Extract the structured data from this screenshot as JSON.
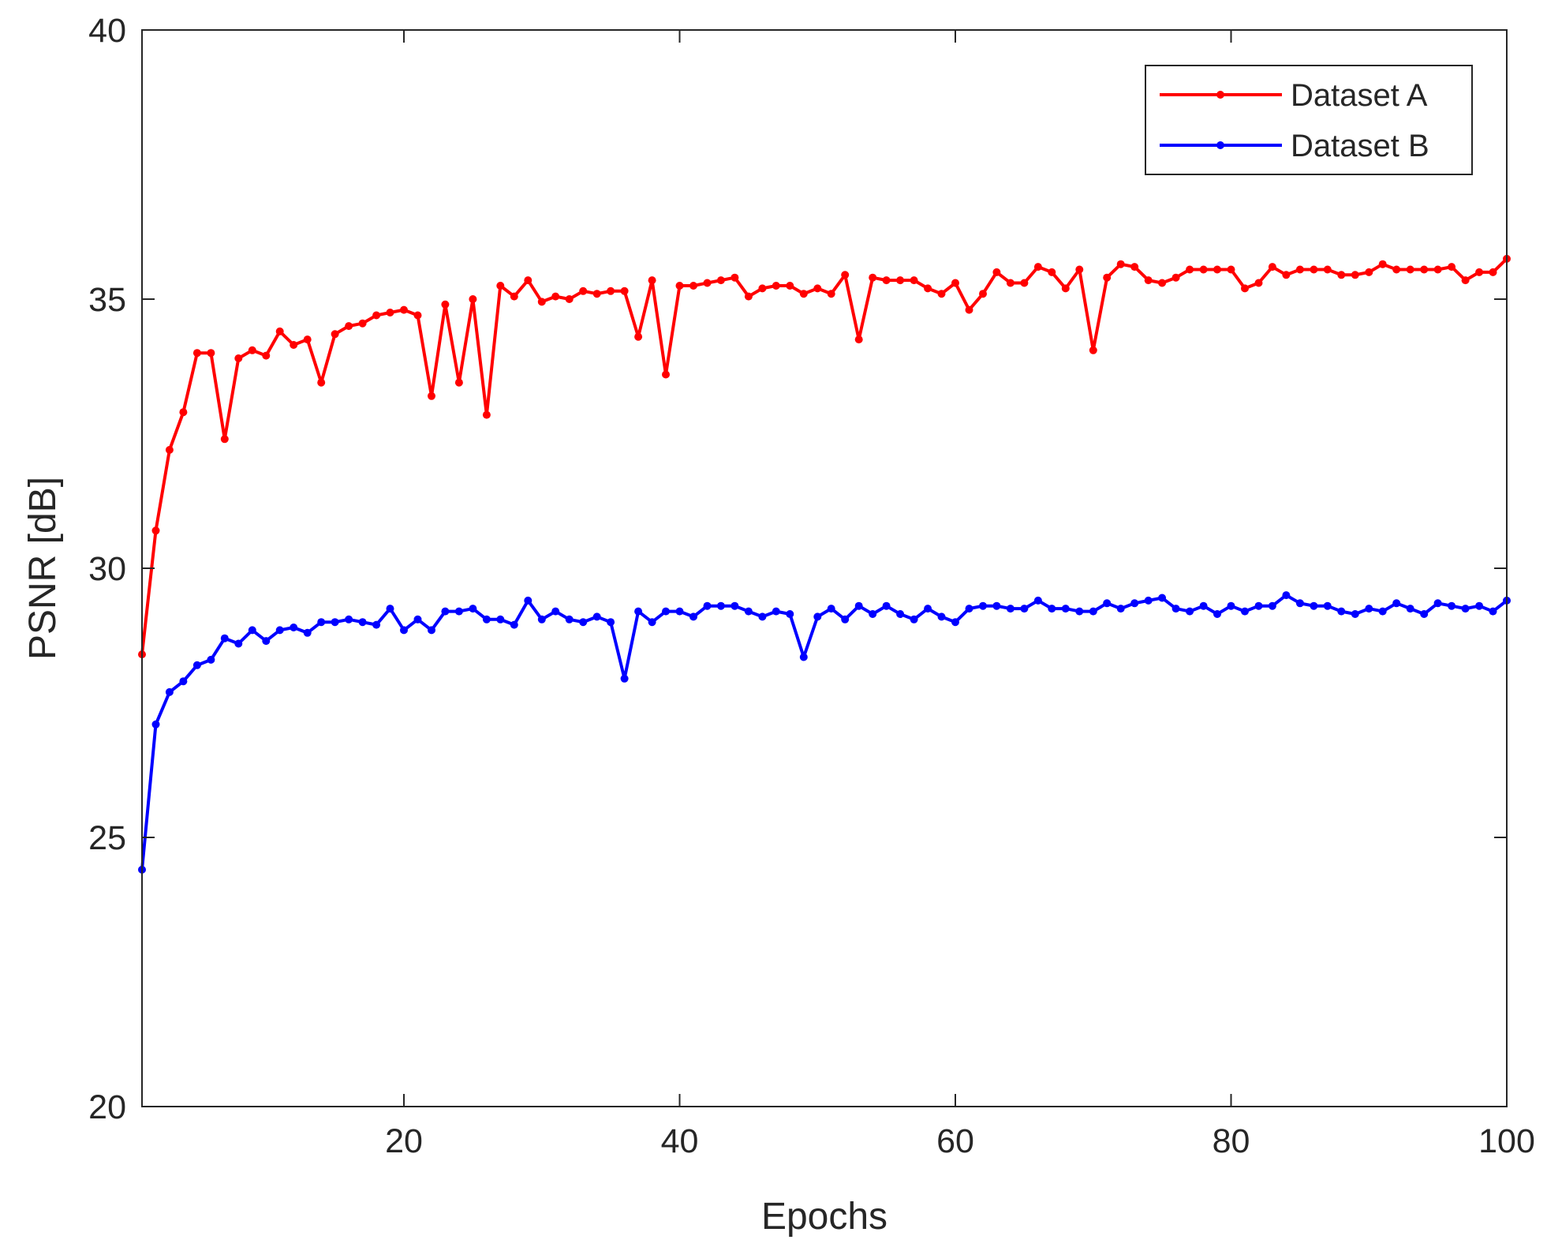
{
  "chart_data": {
    "type": "line",
    "title": "",
    "xlabel": "Epochs",
    "ylabel": "PSNR [dB]",
    "xlim": [
      1,
      100
    ],
    "ylim": [
      20,
      40
    ],
    "xticks": [
      20,
      40,
      60,
      80,
      100
    ],
    "yticks": [
      20,
      25,
      30,
      35,
      40
    ],
    "grid": false,
    "legend_position": "top-right",
    "x": [
      1,
      2,
      3,
      4,
      5,
      6,
      7,
      8,
      9,
      10,
      11,
      12,
      13,
      14,
      15,
      16,
      17,
      18,
      19,
      20,
      21,
      22,
      23,
      24,
      25,
      26,
      27,
      28,
      29,
      30,
      31,
      32,
      33,
      34,
      35,
      36,
      37,
      38,
      39,
      40,
      41,
      42,
      43,
      44,
      45,
      46,
      47,
      48,
      49,
      50,
      51,
      52,
      53,
      54,
      55,
      56,
      57,
      58,
      59,
      60,
      61,
      62,
      63,
      64,
      65,
      66,
      67,
      68,
      69,
      70,
      71,
      72,
      73,
      74,
      75,
      76,
      77,
      78,
      79,
      80,
      81,
      82,
      83,
      84,
      85,
      86,
      87,
      88,
      89,
      90,
      91,
      92,
      93,
      94,
      95,
      96,
      97,
      98,
      99,
      100
    ],
    "series": [
      {
        "name": "Dataset A",
        "color": "#ff0000",
        "values": [
          28.4,
          30.7,
          32.2,
          32.9,
          34.0,
          34.0,
          32.4,
          33.9,
          34.05,
          33.95,
          34.4,
          34.15,
          34.25,
          33.45,
          34.35,
          34.5,
          34.55,
          34.7,
          34.75,
          34.8,
          34.7,
          33.2,
          34.9,
          33.45,
          35.0,
          32.85,
          35.25,
          35.05,
          35.35,
          34.95,
          35.05,
          35.0,
          35.15,
          35.1,
          35.15,
          35.15,
          34.3,
          35.35,
          33.6,
          35.25,
          35.25,
          35.3,
          35.35,
          35.4,
          35.05,
          35.2,
          35.25,
          35.25,
          35.1,
          35.2,
          35.1,
          35.45,
          34.25,
          35.4,
          35.35,
          35.35,
          35.35,
          35.2,
          35.1,
          35.3,
          34.8,
          35.1,
          35.5,
          35.3,
          35.3,
          35.6,
          35.5,
          35.2,
          35.55,
          34.05,
          35.4,
          35.65,
          35.6,
          35.35,
          35.3,
          35.4,
          35.55,
          35.55,
          35.55,
          35.55,
          35.2,
          35.3,
          35.6,
          35.45,
          35.55,
          35.55,
          35.55,
          35.45,
          35.45,
          35.5,
          35.65,
          35.55,
          35.55,
          35.55,
          35.55,
          35.6,
          35.35,
          35.5,
          35.5,
          35.75
        ]
      },
      {
        "name": "Dataset B",
        "color": "#0000ff",
        "values": [
          24.4,
          27.1,
          27.7,
          27.9,
          28.2,
          28.3,
          28.7,
          28.6,
          28.85,
          28.65,
          28.85,
          28.9,
          28.8,
          29.0,
          29.0,
          29.05,
          29.0,
          28.95,
          29.25,
          28.85,
          29.05,
          28.85,
          29.2,
          29.2,
          29.25,
          29.05,
          29.05,
          28.95,
          29.4,
          29.05,
          29.2,
          29.05,
          29.0,
          29.1,
          29.0,
          27.95,
          29.2,
          29.0,
          29.2,
          29.2,
          29.1,
          29.3,
          29.3,
          29.3,
          29.2,
          29.1,
          29.2,
          29.15,
          28.35,
          29.1,
          29.25,
          29.05,
          29.3,
          29.15,
          29.3,
          29.15,
          29.05,
          29.25,
          29.1,
          29.0,
          29.25,
          29.3,
          29.3,
          29.25,
          29.25,
          29.4,
          29.25,
          29.25,
          29.2,
          29.2,
          29.35,
          29.25,
          29.35,
          29.4,
          29.45,
          29.25,
          29.2,
          29.3,
          29.15,
          29.3,
          29.2,
          29.3,
          29.3,
          29.5,
          29.35,
          29.3,
          29.3,
          29.2,
          29.15,
          29.25,
          29.2,
          29.35,
          29.25,
          29.15,
          29.35,
          29.3,
          29.25,
          29.3,
          29.2,
          29.4
        ]
      }
    ]
  }
}
